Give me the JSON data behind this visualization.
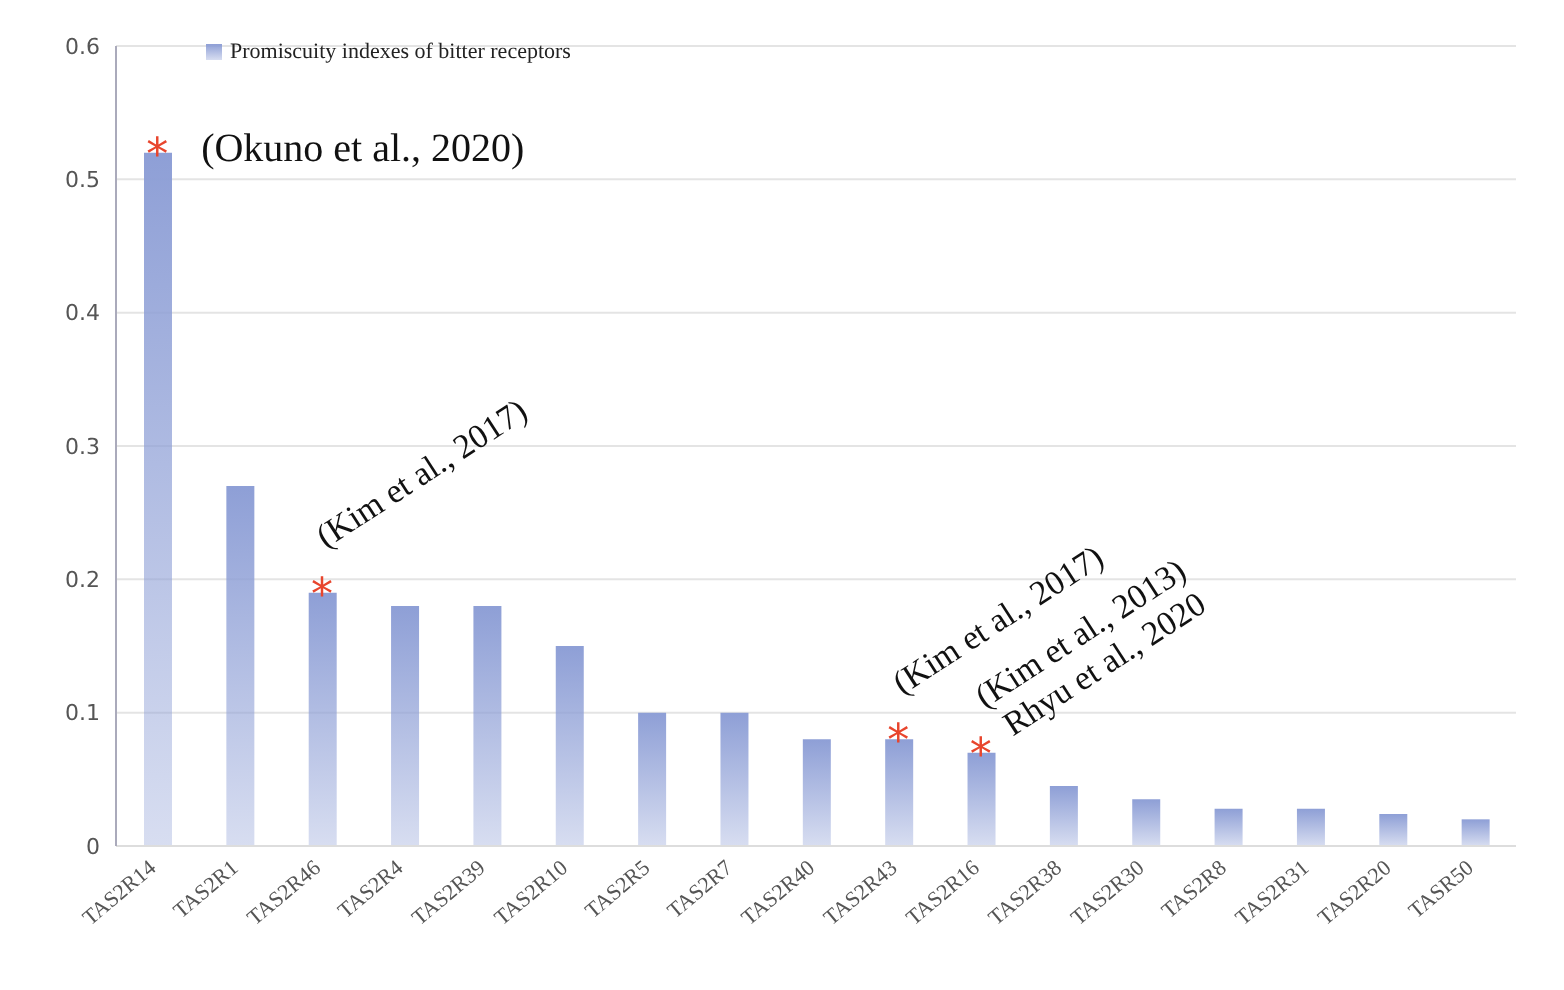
{
  "chart_data": {
    "type": "bar",
    "categories": [
      "TAS2R14",
      "TAS2R1",
      "TAS2R46",
      "TAS2R4",
      "TAS2R39",
      "TAS2R10",
      "TAS2R5",
      "TAS2R7",
      "TAS2R40",
      "TAS2R43",
      "TAS2R16",
      "TAS2R38",
      "TAS2R30",
      "TAS2R8",
      "TAS2R31",
      "TAS2R20",
      "TASR50"
    ],
    "series": [
      {
        "name": "Promiscuity indexes of bitter receptors",
        "color": "#8e9fd6",
        "values": [
          0.52,
          0.27,
          0.19,
          0.18,
          0.18,
          0.15,
          0.1,
          0.1,
          0.08,
          0.08,
          0.07,
          0.045,
          0.035,
          0.028,
          0.028,
          0.024,
          0.02
        ]
      }
    ],
    "ylim": [
      0,
      0.6
    ],
    "yticks": [
      0,
      0.1,
      0.2,
      0.3,
      0.4,
      0.5,
      0.6
    ],
    "grid": "y",
    "legend": "top left",
    "annotations": [
      {
        "text": "*",
        "x": "TAS2R14",
        "y": 0.52
      },
      {
        "text": "(Okuno et al., 2020)",
        "x": "TAS2R14",
        "y": 0.52
      },
      {
        "text": "*",
        "x": "TAS2R46",
        "y": 0.19
      },
      {
        "text": "(Kim et al., 2017)",
        "x": "TAS2R46",
        "y": 0.19
      },
      {
        "text": "*",
        "x": "TAS2R43",
        "y": 0.08
      },
      {
        "text": "(Kim et al., 2017)",
        "x": "TAS2R43",
        "y": 0.08
      },
      {
        "text": "*",
        "x": "TAS2R16",
        "y": 0.07
      },
      {
        "text": "(Kim et al., 2013)",
        "x": "TAS2R16",
        "y": 0.07
      },
      {
        "text": "Rhyu et al., 2020",
        "x": "TAS2R16",
        "y": 0.07
      }
    ]
  }
}
